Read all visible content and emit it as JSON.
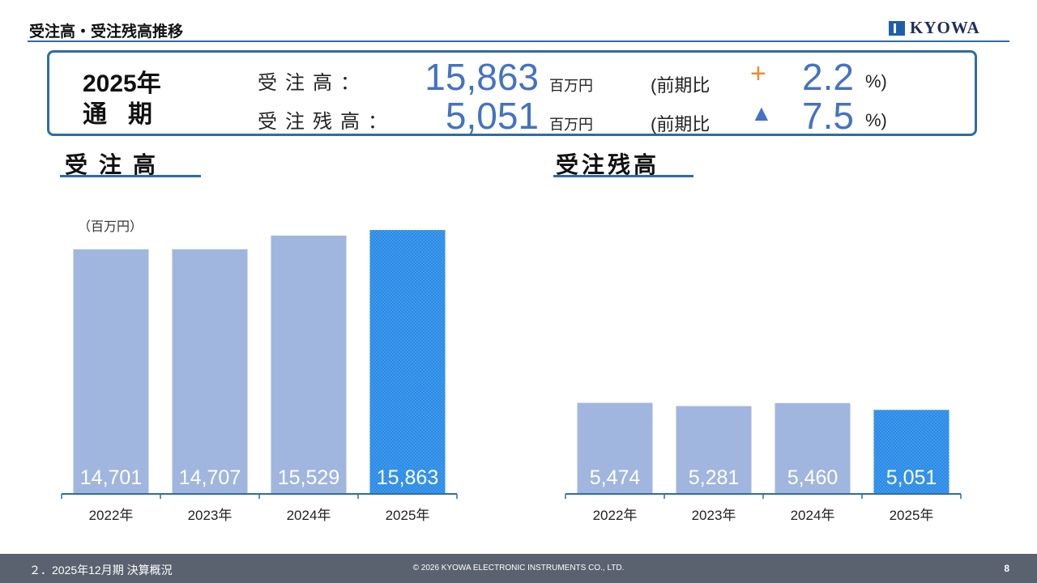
{
  "header": {
    "title": "受注高・受注残高推移",
    "logo_text": "KYOWA"
  },
  "summary": {
    "year": "2025年",
    "period": "通期",
    "rows": [
      {
        "label": "受注高：",
        "value": "15,863",
        "unit": "百万円",
        "prev_label": "(前期比",
        "sign": "+",
        "pct": "2.2",
        "pct_sign": "%)"
      },
      {
        "label": "受注残高：",
        "value": "5,051",
        "unit": "百万円",
        "prev_label": "(前期比",
        "sign": "▲",
        "pct": "7.5",
        "pct_sign": "%)"
      }
    ]
  },
  "colors": {
    "bar": "#a0b6df",
    "highlight": "#3b9af2",
    "axis": "#2e6da4",
    "accent_plus": "#e98d2e",
    "accent_triangle": "#4472c4"
  },
  "chart_data": [
    {
      "type": "bar",
      "title": "受注高",
      "unit_label": "（百万円）",
      "categories": [
        "2022年",
        "2023年",
        "2024年",
        "2025年"
      ],
      "values": [
        14701,
        14707,
        15529,
        15863
      ],
      "value_labels": [
        "14,701",
        "14,707",
        "15,529",
        "15,863"
      ],
      "highlight_index": 3,
      "ylim": [
        0,
        16500
      ]
    },
    {
      "type": "bar",
      "title": "受注残高",
      "categories": [
        "2022年",
        "2023年",
        "2024年",
        "2025年"
      ],
      "values": [
        5474,
        5281,
        5460,
        5051
      ],
      "value_labels": [
        "5,474",
        "5,281",
        "5,460",
        "5,051"
      ],
      "highlight_index": 3,
      "ylim": [
        0,
        16500
      ]
    }
  ],
  "footer": {
    "left": "２．2025年12月期 決算概況",
    "center": "© 2026 KYOWA ELECTRONIC INSTRUMENTS CO., LTD.",
    "page": "8"
  }
}
